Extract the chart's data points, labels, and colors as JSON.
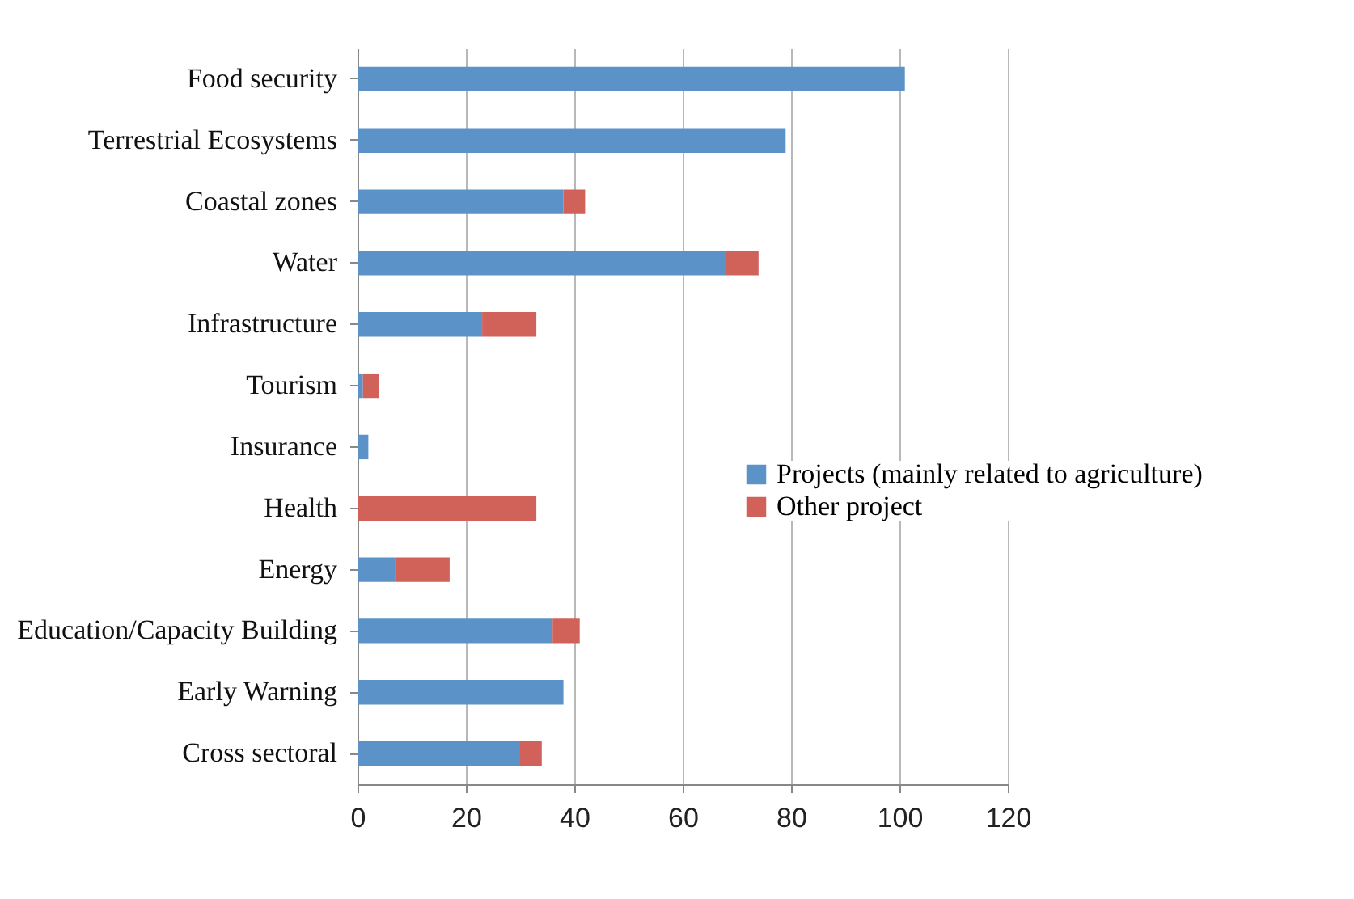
{
  "chart_data": {
    "type": "bar",
    "orientation": "horizontal",
    "stacked": true,
    "categories": [
      "Food security",
      "Terrestrial Ecosystems",
      "Coastal zones",
      "Water",
      "Infrastructure",
      "Tourism",
      "Insurance",
      "Health",
      "Energy",
      "Education/Capacity Building",
      "Early Warning",
      "Cross sectoral"
    ],
    "series": [
      {
        "name": "Projects (mainly related to agriculture)",
        "color": "#5b93c9",
        "values": [
          101,
          79,
          38,
          68,
          23,
          1,
          2,
          0,
          7,
          36,
          38,
          30
        ]
      },
      {
        "name": "Other project",
        "color": "#d0625a",
        "values": [
          0,
          0,
          4,
          6,
          10,
          3,
          0,
          33,
          10,
          5,
          0,
          4
        ]
      }
    ],
    "xlim": [
      0,
      120
    ],
    "xticks": [
      0,
      20,
      40,
      60,
      80,
      100,
      120
    ],
    "grid": "x",
    "legend": "right"
  }
}
